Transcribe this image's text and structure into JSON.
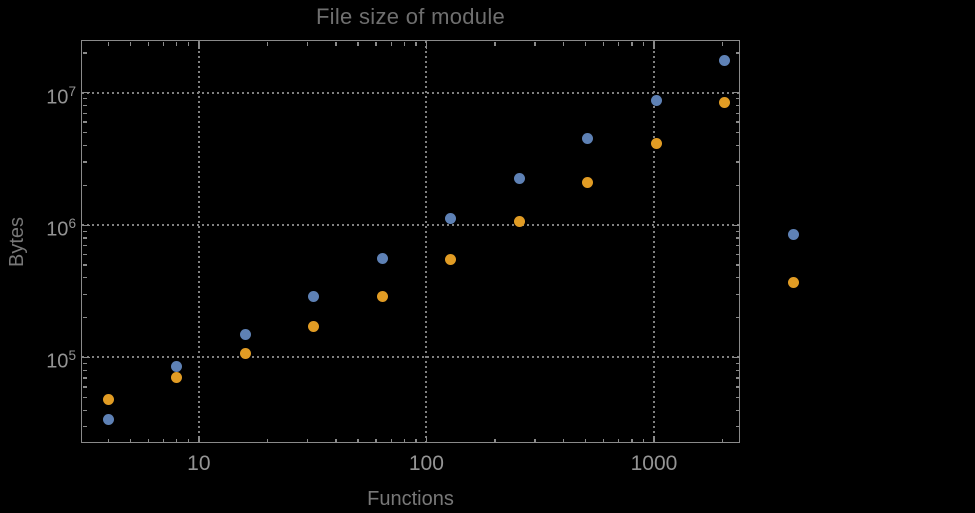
{
  "chart_data": {
    "type": "scatter",
    "title": "File size of module",
    "xlabel": "Functions",
    "ylabel": "Bytes",
    "x_scale": "log",
    "y_scale": "log",
    "xlim": [
      3.05,
      2400
    ],
    "ylim": [
      22400,
      24800000
    ],
    "grid": "dotted gridlines at decade ticks, framed on all four sides with inward log minor ticks",
    "legend_position": "none",
    "x_major_ticks": [
      10,
      100,
      1000
    ],
    "x_tick_labels": [
      "10",
      "100",
      "1000"
    ],
    "y_major_ticks": [
      100000,
      1000000,
      10000000
    ],
    "y_tick_labels": [
      {
        "mantissa": "10",
        "exponent": "5"
      },
      {
        "mantissa": "10",
        "exponent": "6"
      },
      {
        "mantissa": "10",
        "exponent": "7"
      }
    ],
    "series": [
      {
        "name": "blue-series",
        "color": "#5e81b5",
        "points": [
          [
            4,
            34000
          ],
          [
            8,
            86000
          ],
          [
            16,
            150000
          ],
          [
            32,
            290000
          ],
          [
            64,
            560000
          ],
          [
            128,
            1120000
          ],
          [
            256,
            2250000
          ],
          [
            512,
            4500000
          ],
          [
            1024,
            8800000
          ],
          [
            2048,
            17500000
          ],
          [
            4096,
            850000
          ]
        ]
      },
      {
        "name": "orange-series",
        "color": "#e19c24",
        "points": [
          [
            4,
            48500
          ],
          [
            8,
            70000
          ],
          [
            16,
            107000
          ],
          [
            32,
            170000
          ],
          [
            64,
            288000
          ],
          [
            128,
            545000
          ],
          [
            256,
            1060000
          ],
          [
            512,
            2080000
          ],
          [
            1024,
            4150000
          ],
          [
            2048,
            8400000
          ],
          [
            4096,
            370000
          ]
        ]
      }
    ]
  },
  "colors": {
    "background": "#000000",
    "frame": "#8a8a8a",
    "gridline": "#808080",
    "tick": "#8a8a8a",
    "title_text": "#6f6f6f",
    "axis_label_text": "#787878",
    "tick_label_text": "#949494",
    "series_blue": "#5e81b5",
    "series_orange": "#e19c24"
  }
}
